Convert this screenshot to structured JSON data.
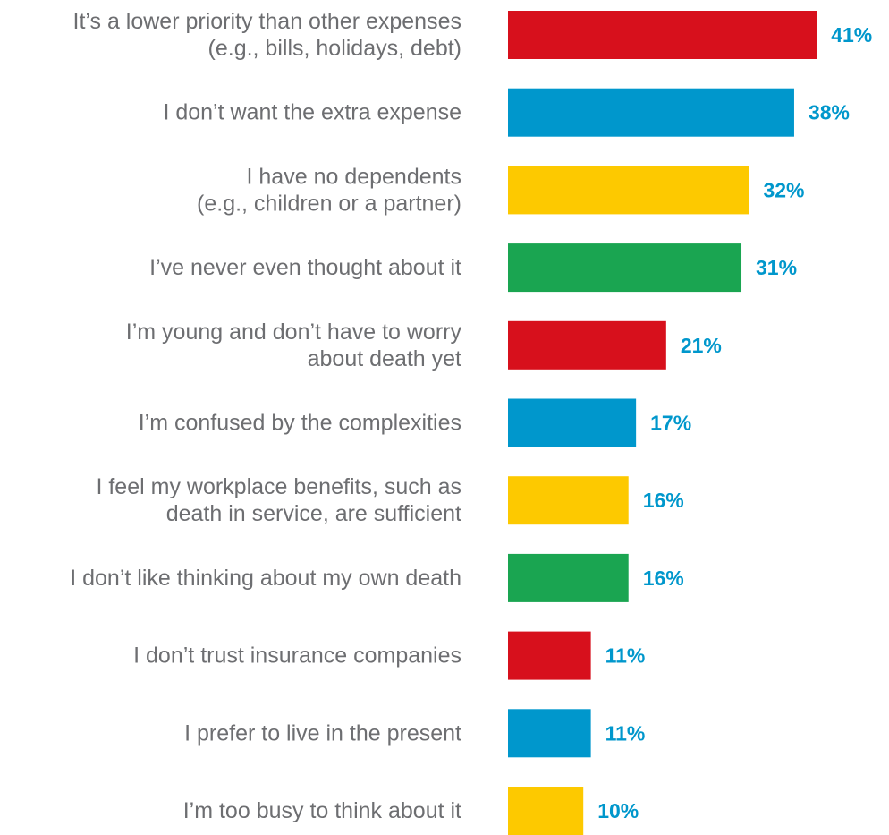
{
  "chart_data": {
    "type": "bar",
    "orientation": "horizontal",
    "categories": [
      [
        "It’s a lower priority than other expenses",
        "(e.g., bills, holidays, debt)"
      ],
      [
        "I don’t want the extra expense"
      ],
      [
        "I have no dependents",
        "(e.g., children or a partner)"
      ],
      [
        "I’ve never even thought about it"
      ],
      [
        "I’m young and don’t have to worry",
        "about death yet"
      ],
      [
        "I’m confused by the complexities"
      ],
      [
        "I feel my workplace benefits, such as",
        "death in service, are sufficient"
      ],
      [
        "I don’t like thinking about my own death"
      ],
      [
        "I don’t trust insurance companies"
      ],
      [
        "I prefer to live in the present"
      ],
      [
        "I’m too busy to think about it"
      ]
    ],
    "values": [
      41,
      38,
      32,
      31,
      21,
      17,
      16,
      16,
      11,
      11,
      10
    ],
    "value_labels": [
      "41%",
      "38%",
      "32%",
      "31%",
      "21%",
      "17%",
      "16%",
      "16%",
      "11%",
      "11%",
      "10%"
    ],
    "bar_colors": [
      "#d7101c",
      "#0097cc",
      "#fdc900",
      "#1aa551",
      "#d7101c",
      "#0097cc",
      "#fdc900",
      "#1aa551",
      "#d7101c",
      "#0097cc",
      "#fdc900"
    ],
    "value_label_color": "#0097cc",
    "category_label_color": "#6d6e71",
    "xlim": [
      0,
      41
    ],
    "grid": false,
    "legend": "none"
  }
}
